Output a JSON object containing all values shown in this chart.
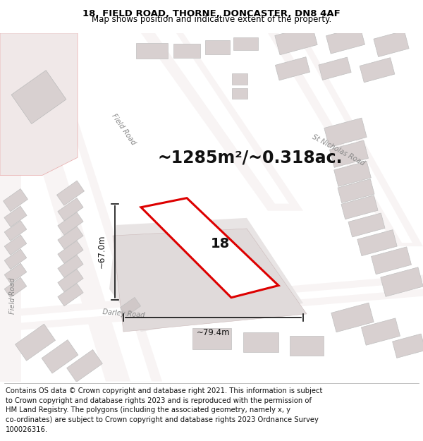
{
  "title_line1": "18, FIELD ROAD, THORNE, DONCASTER, DN8 4AF",
  "title_line2": "Map shows position and indicative extent of the property.",
  "area_text": "~1285m²/~0.318ac.",
  "property_number": "18",
  "dimension_width": "~79.4m",
  "dimension_height": "~67.0m",
  "footer_lines": [
    "Contains OS data © Crown copyright and database right 2021. This information is subject",
    "to Crown copyright and database rights 2023 and is reproduced with the permission of",
    "HM Land Registry. The polygons (including the associated geometry, namely x, y",
    "co-ordinates) are subject to Crown copyright and database rights 2023 Ordnance Survey",
    "100026316."
  ],
  "map_bg": "#f5f0f0",
  "road_fill": "#ffffff",
  "building_fill": "#e8e0e0",
  "building_edge": "#e8aaaa",
  "plot_fill": "#f8f4f4",
  "land_fill": "#eeeeee",
  "prop_color": "#dd0000",
  "prop_fill": "#ffffff",
  "dim_color": "#111111",
  "road_label_color": "#888888",
  "title_fs": 9.5,
  "sub_fs": 8.5,
  "area_fs": 17,
  "num_fs": 14,
  "dim_fs": 8.5,
  "footer_fs": 7.2
}
